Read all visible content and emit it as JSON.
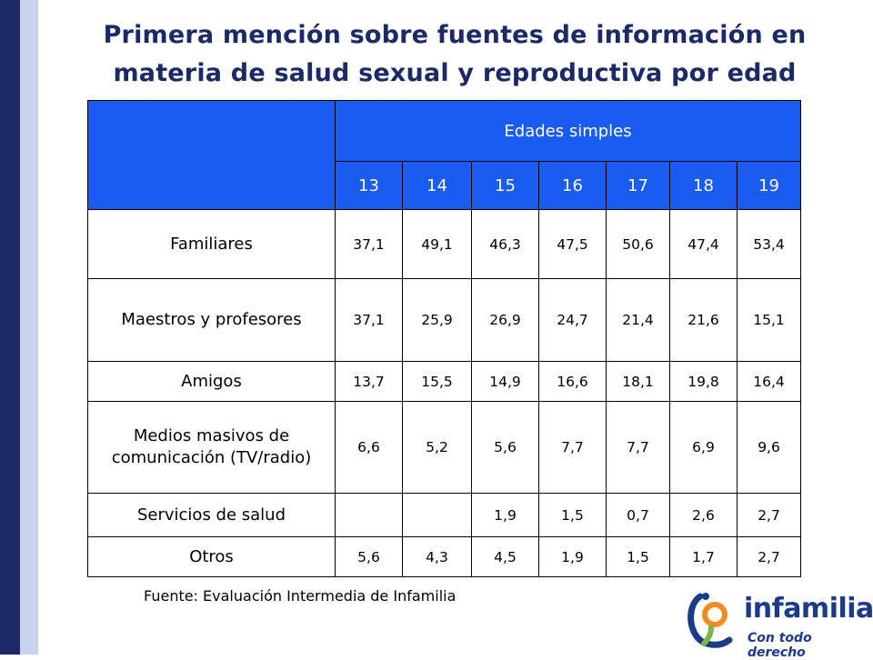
{
  "title_line1": "Primera mención sobre fuentes de información en",
  "title_line2": "materia de salud sexual y reproductiva por edad",
  "table": {
    "group_header": "Edades simples",
    "ages": [
      "13",
      "14",
      "15",
      "16",
      "17",
      "18",
      "19"
    ],
    "rows": [
      {
        "label": "Familiares",
        "values": [
          "37,1",
          "49,1",
          "46,3",
          "47,5",
          "50,6",
          "47,4",
          "53,4"
        ]
      },
      {
        "label": "Maestros y profesores",
        "values": [
          "37,1",
          "25,9",
          "26,9",
          "24,7",
          "21,4",
          "21,6",
          "15,1"
        ]
      },
      {
        "label": "Amigos",
        "values": [
          "13,7",
          "15,5",
          "14,9",
          "16,6",
          "18,1",
          "19,8",
          "16,4"
        ]
      },
      {
        "label": "Medios masivos de comunicación (TV/radio)",
        "values": [
          "6,6",
          "5,2",
          "5,6",
          "7,7",
          "7,7",
          "6,9",
          "9,6"
        ]
      },
      {
        "label": "Servicios de salud",
        "values": [
          "",
          "",
          "1,9",
          "1,5",
          "0,7",
          "2,6",
          "2,7"
        ]
      },
      {
        "label": "Otros",
        "values": [
          "5,6",
          "4,3",
          "4,5",
          "1,9",
          "1,5",
          "1,7",
          "2,7"
        ]
      }
    ]
  },
  "source": "Fuente: Evaluación Intermedia de Infamilia",
  "logo": {
    "name": "infamilia",
    "tagline": "Con todo derecho",
    "colors": {
      "blue": "#1b3a8a",
      "orange": "#f28c1e",
      "green": "#7ab648"
    }
  },
  "colors": {
    "header_blue": "#1a5bf0",
    "title_navy": "#1b2a66",
    "side_bar_dark": "#1b2a66",
    "side_bar_light": "#c9d2ec"
  }
}
